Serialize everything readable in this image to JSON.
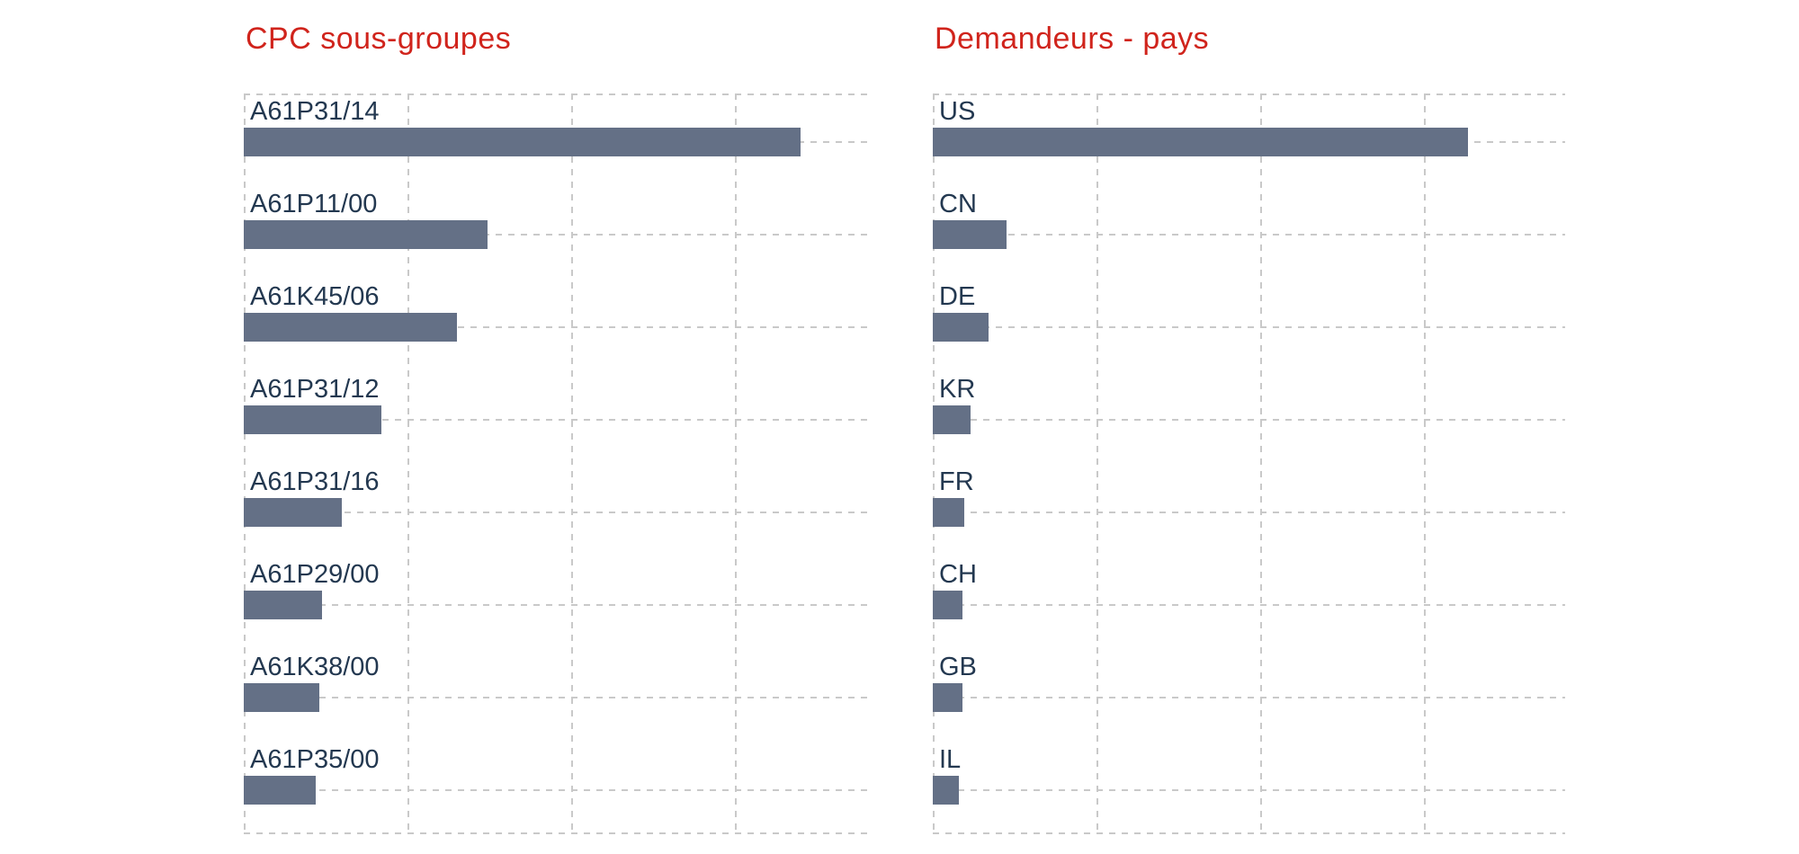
{
  "page": {
    "background": "#ffffff"
  },
  "colors": {
    "title_red": "#d0241c",
    "bar_fill": "#647086",
    "category_label": "#233850",
    "gridline": "#c9c9c9"
  },
  "chart_data": [
    {
      "type": "bar",
      "orientation": "horizontal",
      "title": "CPC sous-groupes",
      "categories": [
        "A61P31/14",
        "A61P11/00",
        "A61K45/06",
        "A61P31/12",
        "A61P31/16",
        "A61P29/00",
        "A61K38/00",
        "A61P35/00"
      ],
      "values": [
        3.4,
        1.49,
        1.3,
        0.84,
        0.6,
        0.48,
        0.46,
        0.44
      ],
      "value_axis": {
        "tick_labels_visible": false,
        "units": "gridline-intervals",
        "xlim": [
          0,
          3.82
        ],
        "gridline_count": 4,
        "grid_style": "dashed"
      },
      "legend": "none",
      "bar_label_position": "above-bar"
    },
    {
      "type": "bar",
      "orientation": "horizontal",
      "title": "Demandeurs - pays",
      "categories": [
        "US",
        "CN",
        "DE",
        "KR",
        "FR",
        "CH",
        "GB",
        "IL"
      ],
      "values": [
        3.27,
        0.45,
        0.34,
        0.23,
        0.19,
        0.18,
        0.18,
        0.16
      ],
      "value_axis": {
        "tick_labels_visible": false,
        "units": "gridline-intervals",
        "xlim": [
          0,
          3.86
        ],
        "gridline_count": 4,
        "grid_style": "dashed"
      },
      "legend": "none",
      "bar_label_position": "above-bar"
    }
  ]
}
